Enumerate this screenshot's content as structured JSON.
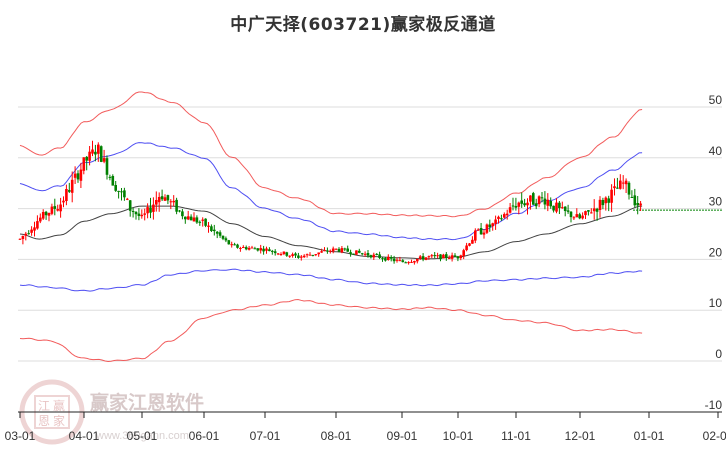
{
  "title": "中广天择(603721)赢家极反通道",
  "watermark": {
    "brand": "赢家江恩软件",
    "url": "www.360gann.com",
    "seal": [
      "江",
      "赢",
      "恩",
      "家"
    ]
  },
  "colors": {
    "up": "#ff0000",
    "down": "#008000",
    "outer_band": "#f04040",
    "inner_band": "#3030f0",
    "mid_line": "#222222",
    "projection": "#008000",
    "grid": "#dddddd"
  },
  "chart_data": {
    "type": "candlestick",
    "title": "中广天择(603721)赢家极反通道",
    "xlabel": "",
    "ylabel": "",
    "ylim": [
      -10,
      50
    ],
    "y_ticks": [
      50,
      40,
      30,
      20,
      10,
      0,
      -10
    ],
    "x_ticks": [
      "03-01",
      "04-01",
      "05-01",
      "06-01",
      "07-01",
      "08-01",
      "09-01",
      "10-01",
      "11-01",
      "12-01",
      "01-01",
      "02-01"
    ],
    "grid": "horizontal",
    "legend": "none",
    "series": [
      {
        "name": "upper_outer_band",
        "color": "red",
        "points": [
          [
            "03-01",
            42.5
          ],
          [
            "03-10",
            40.5
          ],
          [
            "03-20",
            42
          ],
          [
            "04-01",
            47
          ],
          [
            "04-15",
            49.5
          ],
          [
            "05-01",
            53
          ],
          [
            "05-15",
            51
          ],
          [
            "06-01",
            47
          ],
          [
            "06-15",
            40
          ],
          [
            "07-01",
            34
          ],
          [
            "07-15",
            32
          ],
          [
            "08-01",
            29
          ],
          [
            "08-15",
            29
          ],
          [
            "09-01",
            28.7
          ],
          [
            "09-15",
            28.6
          ],
          [
            "10-01",
            28.5
          ],
          [
            "10-15",
            30
          ],
          [
            "11-01",
            33
          ],
          [
            "11-15",
            36
          ],
          [
            "12-01",
            40
          ],
          [
            "12-15",
            44
          ],
          [
            "12-28",
            49.5
          ]
        ]
      },
      {
        "name": "upper_inner_band",
        "color": "blue",
        "points": [
          [
            "03-01",
            35
          ],
          [
            "03-10",
            33.5
          ],
          [
            "03-20",
            34.5
          ],
          [
            "04-01",
            39
          ],
          [
            "04-15",
            40.5
          ],
          [
            "05-01",
            43
          ],
          [
            "05-15",
            42
          ],
          [
            "06-01",
            40
          ],
          [
            "06-15",
            34
          ],
          [
            "07-01",
            30
          ],
          [
            "07-15",
            28
          ],
          [
            "08-01",
            25.5
          ],
          [
            "08-15",
            25
          ],
          [
            "09-01",
            24.3
          ],
          [
            "09-15",
            24
          ],
          [
            "10-01",
            24
          ],
          [
            "10-15",
            26
          ],
          [
            "11-01",
            29
          ],
          [
            "11-15",
            31.5
          ],
          [
            "12-01",
            34
          ],
          [
            "12-15",
            37.5
          ],
          [
            "12-28",
            41
          ]
        ]
      },
      {
        "name": "middle_line",
        "color": "black",
        "points": [
          [
            "03-01",
            25
          ],
          [
            "03-10",
            24
          ],
          [
            "03-20",
            24.8
          ],
          [
            "04-01",
            27.5
          ],
          [
            "04-15",
            29
          ],
          [
            "05-01",
            30.5
          ],
          [
            "05-15",
            30.5
          ],
          [
            "06-01",
            29.5
          ],
          [
            "06-15",
            27
          ],
          [
            "07-01",
            24.5
          ],
          [
            "07-15",
            22.7
          ],
          [
            "08-01",
            21.5
          ],
          [
            "08-15",
            20.6
          ],
          [
            "09-01",
            20.3
          ],
          [
            "09-15",
            20.1
          ],
          [
            "10-01",
            20.5
          ],
          [
            "10-15",
            21.5
          ],
          [
            "11-01",
            23.5
          ],
          [
            "11-15",
            25
          ],
          [
            "12-01",
            27
          ],
          [
            "12-15",
            28.5
          ],
          [
            "12-28",
            30.5
          ]
        ]
      },
      {
        "name": "lower_inner_band",
        "color": "blue",
        "points": [
          [
            "03-01",
            15
          ],
          [
            "03-15",
            14.5
          ],
          [
            "04-01",
            13.8
          ],
          [
            "04-15",
            14.3
          ],
          [
            "05-01",
            15
          ],
          [
            "05-15",
            17
          ],
          [
            "06-01",
            17.8
          ],
          [
            "06-15",
            18
          ],
          [
            "07-01",
            17.5
          ],
          [
            "07-15",
            17
          ],
          [
            "08-01",
            16
          ],
          [
            "08-15",
            15.3
          ],
          [
            "09-01",
            15
          ],
          [
            "09-15",
            14.9
          ],
          [
            "10-01",
            15.2
          ],
          [
            "10-15",
            15.8
          ],
          [
            "11-01",
            16
          ],
          [
            "11-15",
            16.3
          ],
          [
            "12-01",
            16.5
          ],
          [
            "12-15",
            17.3
          ],
          [
            "12-28",
            17.7
          ]
        ]
      },
      {
        "name": "lower_outer_band",
        "color": "red",
        "points": [
          [
            "03-01",
            4.5
          ],
          [
            "03-15",
            4
          ],
          [
            "04-01",
            0.5
          ],
          [
            "04-15",
            0
          ],
          [
            "05-01",
            0.5
          ],
          [
            "05-15",
            4
          ],
          [
            "06-01",
            8.5
          ],
          [
            "06-15",
            10
          ],
          [
            "07-01",
            11
          ],
          [
            "07-15",
            12
          ],
          [
            "08-01",
            11
          ],
          [
            "08-15",
            10.5
          ],
          [
            "09-01",
            10.2
          ],
          [
            "09-15",
            10.5
          ],
          [
            "10-01",
            10
          ],
          [
            "10-15",
            9
          ],
          [
            "11-01",
            8
          ],
          [
            "11-15",
            7.5
          ],
          [
            "12-01",
            6
          ],
          [
            "12-15",
            6.2
          ],
          [
            "12-28",
            5.5
          ]
        ]
      },
      {
        "name": "price_candles",
        "color": "red/green",
        "points": [
          [
            "03-01",
            24
          ],
          [
            "03-10",
            28
          ],
          [
            "03-20",
            31
          ],
          [
            "04-01",
            39
          ],
          [
            "04-08",
            42
          ],
          [
            "04-15",
            36
          ],
          [
            "04-25",
            30
          ],
          [
            "05-01",
            28
          ],
          [
            "05-10",
            33
          ],
          [
            "05-20",
            29
          ],
          [
            "06-01",
            27
          ],
          [
            "06-15",
            22.5
          ],
          [
            "07-01",
            22
          ],
          [
            "07-15",
            20.5
          ],
          [
            "08-01",
            22
          ],
          [
            "08-15",
            21
          ],
          [
            "09-01",
            19.5
          ],
          [
            "09-15",
            20.5
          ],
          [
            "10-01",
            20.5
          ],
          [
            "10-10",
            25
          ],
          [
            "10-20",
            27
          ],
          [
            "11-01",
            31
          ],
          [
            "11-15",
            32
          ],
          [
            "11-20",
            30
          ],
          [
            "12-01",
            28
          ],
          [
            "12-10",
            31
          ],
          [
            "12-20",
            35
          ],
          [
            "12-28",
            29.7
          ]
        ]
      },
      {
        "name": "projection",
        "color": "green",
        "style": "dashed",
        "points": [
          [
            "12-28",
            29.7
          ],
          [
            "02-01",
            29.7
          ]
        ]
      }
    ],
    "last_close": 29.7
  }
}
